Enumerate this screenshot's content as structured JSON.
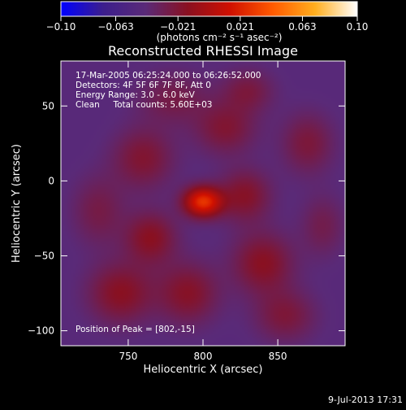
{
  "chart_data": {
    "type": "heatmap",
    "title": "Reconstructed RHESSI Image",
    "xlabel": "Heliocentric X (arcsec)",
    "ylabel": "Heliocentric Y (arcsec)",
    "xlim": [
      705,
      895
    ],
    "ylim": [
      -110,
      80
    ],
    "x_ticks": [
      750,
      800,
      850
    ],
    "y_ticks": [
      -100,
      -50,
      0,
      50
    ],
    "x_tick_labels": [
      "750",
      "800",
      "850"
    ],
    "y_tick_labels": [
      "−100",
      "−50",
      "0",
      "50"
    ],
    "colorbar": {
      "range": [
        -0.1,
        0.1
      ],
      "ticks": [
        -0.1,
        -0.063,
        -0.021,
        0.021,
        0.063,
        0.1
      ],
      "tick_labels": [
        "−0.10",
        "−0.063",
        "−0.021",
        "0.021",
        "0.063",
        "0.10"
      ],
      "units": "(photons cm⁻² s⁻¹ asec⁻²)",
      "stops": [
        "#0000ff",
        "#3c1e8c",
        "#5a2a78",
        "#8a1020",
        "#d01000",
        "#ff5a00",
        "#ffae1e",
        "#ffffff"
      ]
    },
    "peak": {
      "x": 802,
      "y": -15
    },
    "sources": [
      {
        "x": 800,
        "y": -14,
        "sx": 9,
        "sy": 7,
        "amp": 0.072
      },
      {
        "x": 828,
        "y": -10,
        "sx": 12,
        "sy": 12,
        "amp": 0.028
      },
      {
        "x": 765,
        "y": -38,
        "sx": 12,
        "sy": 12,
        "amp": 0.03
      },
      {
        "x": 760,
        "y": 15,
        "sx": 14,
        "sy": 14,
        "amp": 0.025
      },
      {
        "x": 815,
        "y": 35,
        "sx": 14,
        "sy": 12,
        "amp": 0.024
      },
      {
        "x": 745,
        "y": -75,
        "sx": 15,
        "sy": 14,
        "amp": 0.03
      },
      {
        "x": 790,
        "y": -75,
        "sx": 14,
        "sy": 14,
        "amp": 0.028
      },
      {
        "x": 840,
        "y": -55,
        "sx": 14,
        "sy": 14,
        "amp": 0.03
      },
      {
        "x": 870,
        "y": 25,
        "sx": 12,
        "sy": 14,
        "amp": 0.022
      },
      {
        "x": 780,
        "y": 55,
        "sx": 16,
        "sy": 12,
        "amp": 0.018
      },
      {
        "x": 855,
        "y": -90,
        "sx": 14,
        "sy": 12,
        "amp": 0.022
      },
      {
        "x": 830,
        "y": 60,
        "sx": 12,
        "sy": 10,
        "amp": 0.02
      },
      {
        "x": 730,
        "y": -20,
        "sx": 12,
        "sy": 16,
        "amp": 0.018
      },
      {
        "x": 880,
        "y": -30,
        "sx": 10,
        "sy": 14,
        "amp": 0.016
      }
    ]
  },
  "annotations": {
    "time_range": "17-Mar-2005 06:25:24.000 to 06:26:52.000",
    "detectors": "Detectors: 4F 5F 6F 7F 8F, Att 0",
    "energy": "Energy Range: 3.0 - 6.0 keV",
    "clean": "Clean     Total counts: 5.60E+03",
    "peak_position": "Position of Peak = [802,-15]"
  },
  "footer": {
    "date": "9-Jul-2013 17:31"
  }
}
